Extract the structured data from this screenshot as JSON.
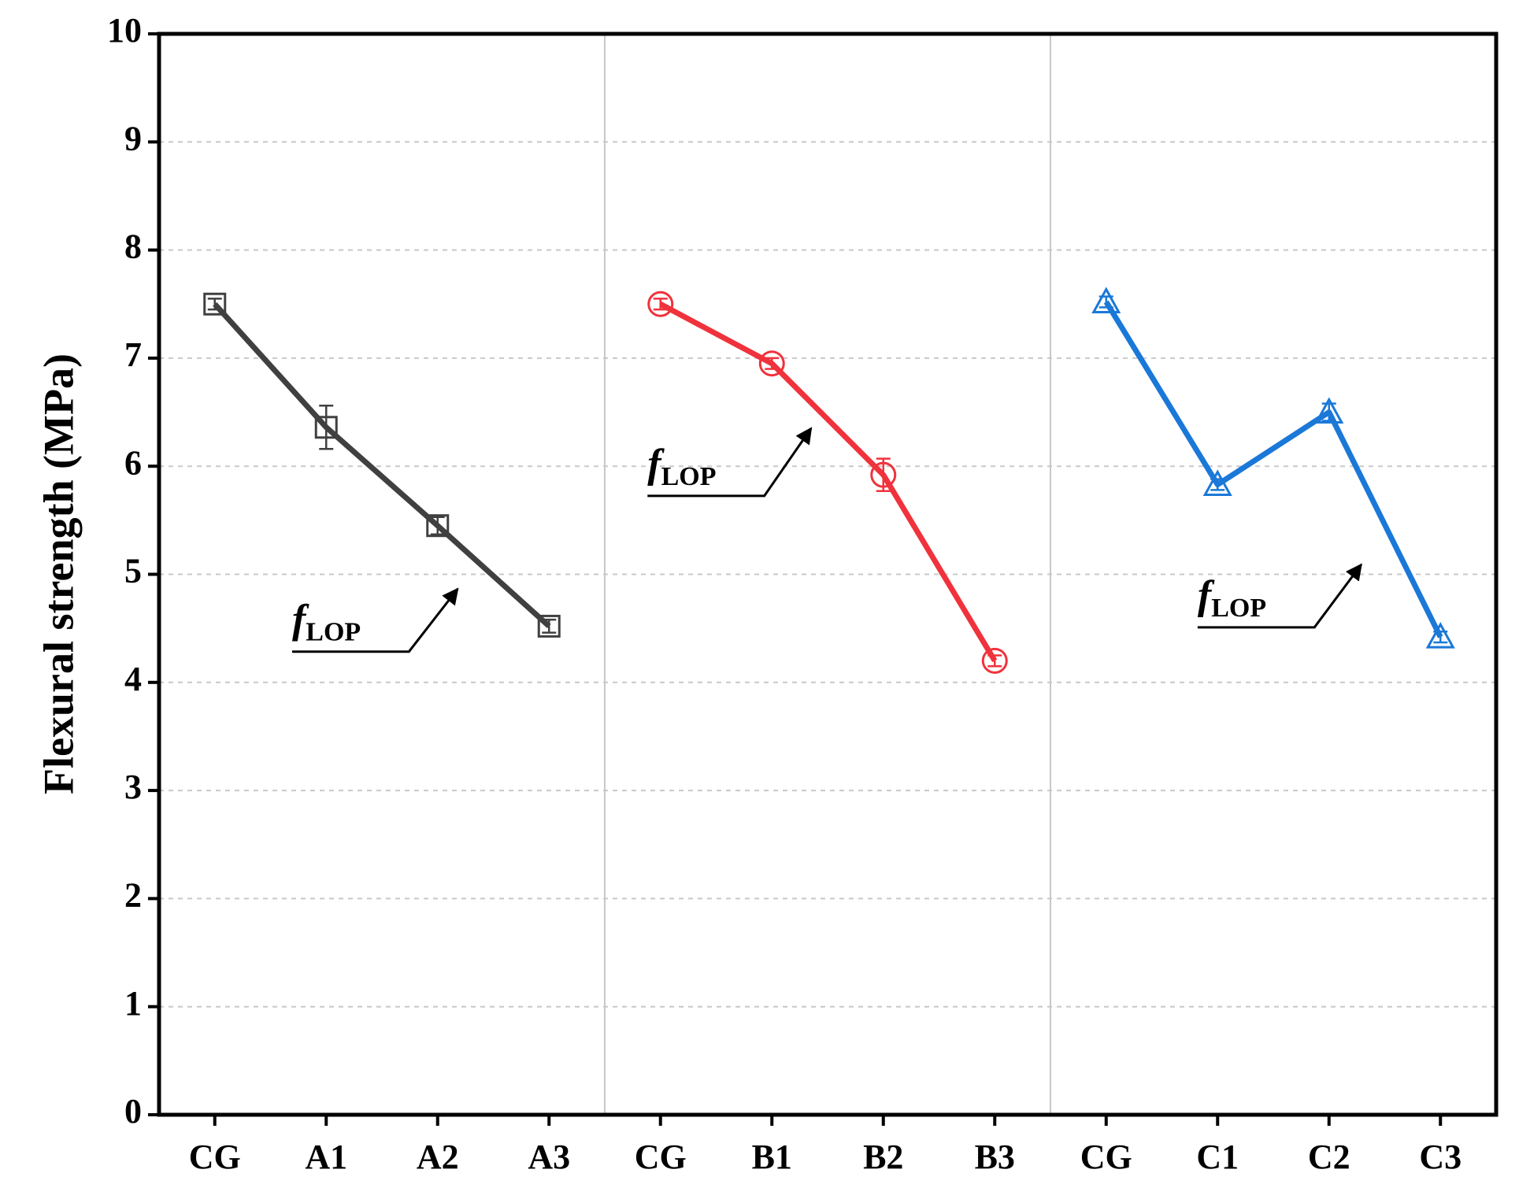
{
  "chart_data": {
    "type": "line",
    "y_label": "Flexural strength (MPa)",
    "categories": [
      "CG",
      "A1",
      "A2",
      "A3",
      "CG",
      "B1",
      "B2",
      "B3",
      "CG",
      "C1",
      "C2",
      "C3"
    ],
    "series": [
      {
        "color": "#404040",
        "marker": "square",
        "values": [
          7.5,
          6.36,
          5.45,
          4.52,
          null,
          null,
          null,
          null,
          null,
          null,
          null,
          null
        ],
        "errors": [
          0.05,
          0.2,
          0.08,
          0.06,
          null,
          null,
          null,
          null,
          null,
          null,
          null,
          null
        ]
      },
      {
        "color": "#f0323c",
        "marker": "circle",
        "values": [
          null,
          null,
          null,
          null,
          7.5,
          6.95,
          5.92,
          4.2,
          null,
          null,
          null,
          null
        ],
        "errors": [
          null,
          null,
          null,
          null,
          0.05,
          0.05,
          0.15,
          0.05,
          null,
          null,
          null,
          null
        ]
      },
      {
        "color": "#1a78d8",
        "marker": "triangle",
        "values": [
          null,
          null,
          null,
          null,
          null,
          null,
          null,
          null,
          7.52,
          5.83,
          6.5,
          4.42
        ],
        "errors": [
          null,
          null,
          null,
          null,
          null,
          null,
          null,
          null,
          0.05,
          0.05,
          0.08,
          0.05
        ]
      }
    ],
    "annotations": [
      {
        "symbol": "f",
        "subscript": "LOP"
      },
      {
        "symbol": "f",
        "subscript": "LOP"
      },
      {
        "symbol": "f",
        "subscript": "LOP"
      }
    ],
    "ylim": [
      0,
      10
    ],
    "yticks": [
      0,
      1,
      2,
      3,
      4,
      5,
      6,
      7,
      8,
      9,
      10
    ],
    "grid": true
  }
}
